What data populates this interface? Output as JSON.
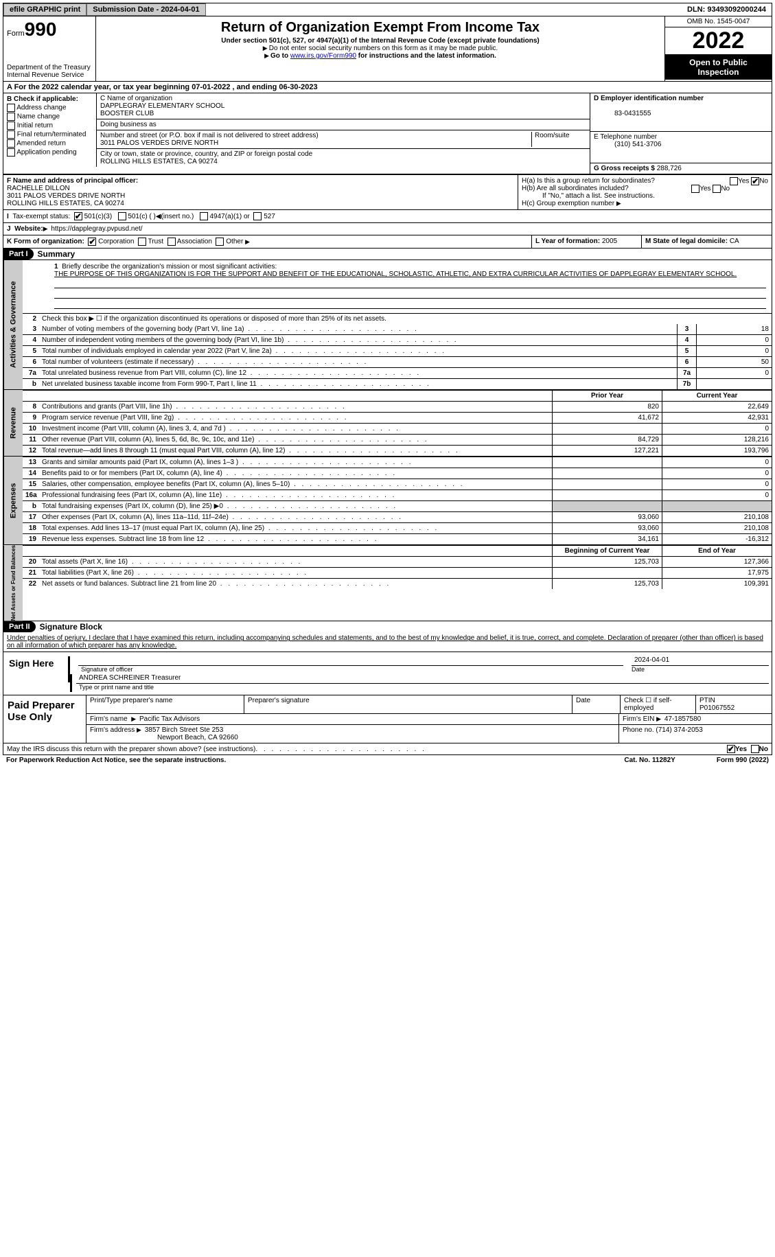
{
  "topbar": {
    "efile_btn": "efile GRAPHIC print",
    "submission_label": "Submission Date - 2024-04-01",
    "dln_label": "DLN: 93493092000244"
  },
  "hdr": {
    "form_label": "Form",
    "form_no": "990",
    "dept1": "Department of the Treasury",
    "dept2": "Internal Revenue Service",
    "title": "Return of Organization Exempt From Income Tax",
    "sub1": "Under section 501(c), 527, or 4947(a)(1) of the Internal Revenue Code (except private foundations)",
    "note1": "Do not enter social security numbers on this form as it may be made public.",
    "note2_pre": "Go to ",
    "note2_link": "www.irs.gov/Form990",
    "note2_post": " for instructions and the latest information.",
    "omb": "OMB No. 1545-0047",
    "year": "2022",
    "otpi": "Open to Public Inspection"
  },
  "rowA": "A  For the 2022 calendar year, or tax year beginning 07-01-2022    , and ending 06-30-2023",
  "b": {
    "label": "B Check if applicable:",
    "opts": [
      "Address change",
      "Name change",
      "Initial return",
      "Final return/terminated",
      "Amended return",
      "Application pending"
    ]
  },
  "c": {
    "name_label": "C Name of organization",
    "name1": "DAPPLEGRAY ELEMENTARY SCHOOL",
    "name2": "BOOSTER CLUB",
    "dba_label": "Doing business as",
    "addr_label": "Number and street (or P.O. box if mail is not delivered to street address)",
    "room_label": "Room/suite",
    "addr": "3011 PALOS VERDES DRIVE NORTH",
    "city_label": "City or town, state or province, country, and ZIP or foreign postal code",
    "city": "ROLLING HILLS ESTATES, CA   90274"
  },
  "d": {
    "ein_label": "D Employer identification number",
    "ein": "83-0431555",
    "tel_label": "E Telephone number",
    "tel": "(310) 541-3706",
    "gross_label": "G Gross receipts $",
    "gross": "288,726"
  },
  "f": {
    "label": "F Name and address of principal officer:",
    "name": "RACHELLE DILLON",
    "addr1": "3011 PALOS VERDES DRIVE NORTH",
    "addr2": "ROLLING HILLS ESTATES, CA   90274"
  },
  "h": {
    "a": "H(a)  Is this a group return for subordinates?",
    "b": "H(b)  Are all subordinates included?",
    "note": "If \"No,\" attach a list. See instructions.",
    "c": "H(c)  Group exemption number"
  },
  "i": {
    "label": "Tax-exempt status:",
    "o1": "501(c)(3)",
    "o2": "501(c) (  )",
    "o2b": "(insert no.)",
    "o3": "4947(a)(1) or",
    "o4": "527"
  },
  "j": {
    "label": "Website:",
    "val": "https://dapplegray.pvpusd.net/"
  },
  "k": {
    "label": "K Form of organization:",
    "o1": "Corporation",
    "o2": "Trust",
    "o3": "Association",
    "o4": "Other"
  },
  "l": {
    "label": "L Year of formation:",
    "val": "2005"
  },
  "m": {
    "label": "M State of legal domicile:",
    "val": "CA"
  },
  "part1": {
    "tag": "Part I",
    "title": "Summary",
    "line1_label": "Briefly describe the organization's mission or most significant activities:",
    "mission": "THE PURPOSE OF THIS ORGANIZATION IS FOR THE SUPPORT AND BENEFIT OF THE EDUCATIONAL, SCHOLASTIC, ATHLETIC, AND EXTRA CURRICULAR ACTIVITIES OF DAPPLEGRAY ELEMENTARY SCHOOL.",
    "line2": "Check this box ▶ ☐  if the organization discontinued its operations or disposed of more than 25% of its net assets.",
    "gov_lines": [
      {
        "n": "3",
        "d": "Number of voting members of the governing body (Part VI, line 1a)",
        "box": "3",
        "v": "18"
      },
      {
        "n": "4",
        "d": "Number of independent voting members of the governing body (Part VI, line 1b)",
        "box": "4",
        "v": "0"
      },
      {
        "n": "5",
        "d": "Total number of individuals employed in calendar year 2022 (Part V, line 2a)",
        "box": "5",
        "v": "0"
      },
      {
        "n": "6",
        "d": "Total number of volunteers (estimate if necessary)",
        "box": "6",
        "v": "50"
      },
      {
        "n": "7a",
        "d": "Total unrelated business revenue from Part VIII, column (C), line 12",
        "box": "7a",
        "v": "0"
      },
      {
        "n": "b",
        "d": "Net unrelated business taxable income from Form 990-T, Part I, line 11",
        "box": "7b",
        "v": ""
      }
    ],
    "col_hdrs": {
      "py": "Prior Year",
      "cy": "Current Year"
    },
    "rev_lines": [
      {
        "n": "8",
        "d": "Contributions and grants (Part VIII, line 1h)",
        "py": "820",
        "cy": "22,649"
      },
      {
        "n": "9",
        "d": "Program service revenue (Part VIII, line 2g)",
        "py": "41,672",
        "cy": "42,931"
      },
      {
        "n": "10",
        "d": "Investment income (Part VIII, column (A), lines 3, 4, and 7d )",
        "py": "",
        "cy": "0"
      },
      {
        "n": "11",
        "d": "Other revenue (Part VIII, column (A), lines 5, 6d, 8c, 9c, 10c, and 11e)",
        "py": "84,729",
        "cy": "128,216"
      },
      {
        "n": "12",
        "d": "Total revenue—add lines 8 through 11 (must equal Part VIII, column (A), line 12)",
        "py": "127,221",
        "cy": "193,796"
      }
    ],
    "exp_lines": [
      {
        "n": "13",
        "d": "Grants and similar amounts paid (Part IX, column (A), lines 1–3 )",
        "py": "",
        "cy": "0"
      },
      {
        "n": "14",
        "d": "Benefits paid to or for members (Part IX, column (A), line 4)",
        "py": "",
        "cy": "0"
      },
      {
        "n": "15",
        "d": "Salaries, other compensation, employee benefits (Part IX, column (A), lines 5–10)",
        "py": "",
        "cy": "0"
      },
      {
        "n": "16a",
        "d": "Professional fundraising fees (Part IX, column (A), line 11e)",
        "py": "",
        "cy": "0"
      },
      {
        "n": "b",
        "d": "Total fundraising expenses (Part IX, column (D), line 25) ▶0",
        "py": "SHADE",
        "cy": "SHADE"
      },
      {
        "n": "17",
        "d": "Other expenses (Part IX, column (A), lines 11a–11d, 11f–24e)",
        "py": "93,060",
        "cy": "210,108"
      },
      {
        "n": "18",
        "d": "Total expenses. Add lines 13–17 (must equal Part IX, column (A), line 25)",
        "py": "93,060",
        "cy": "210,108"
      },
      {
        "n": "19",
        "d": "Revenue less expenses. Subtract line 18 from line 12",
        "py": "34,161",
        "cy": "-16,312"
      }
    ],
    "na_hdrs": {
      "b": "Beginning of Current Year",
      "e": "End of Year"
    },
    "na_lines": [
      {
        "n": "20",
        "d": "Total assets (Part X, line 16)",
        "py": "125,703",
        "cy": "127,366"
      },
      {
        "n": "21",
        "d": "Total liabilities (Part X, line 26)",
        "py": "",
        "cy": "17,975"
      },
      {
        "n": "22",
        "d": "Net assets or fund balances. Subtract line 21 from line 20",
        "py": "125,703",
        "cy": "109,391"
      }
    ],
    "vtab_gov": "Activities & Governance",
    "vtab_rev": "Revenue",
    "vtab_exp": "Expenses",
    "vtab_na": "Net Assets or Fund Balances"
  },
  "part2": {
    "tag": "Part II",
    "title": "Signature Block",
    "decl": "Under penalties of perjury, I declare that I have examined this return, including accompanying schedules and statements, and to the best of my knowledge and belief, it is true, correct, and complete. Declaration of preparer (other than officer) is based on all information of which preparer has any knowledge.",
    "sign_here": "Sign Here",
    "sig_of_officer": "Signature of officer",
    "sig_date": "2024-04-01",
    "date_label": "Date",
    "officer_name": "ANDREA SCHREINER  Treasurer",
    "name_title_label": "Type or print name and title"
  },
  "prep": {
    "lbl": "Paid Preparer Use Only",
    "h1": "Print/Type preparer's name",
    "h2": "Preparer's signature",
    "h3": "Date",
    "h4": "Check ☐ if self-employed",
    "h5": "PTIN",
    "ptin": "P01067552",
    "firm_name_l": "Firm's name",
    "firm_name": "Pacific Tax Advisors",
    "firm_ein_l": "Firm's EIN",
    "firm_ein": "47-1857580",
    "firm_addr_l": "Firm's address",
    "firm_addr1": "3857 Birch Street Ste 253",
    "firm_addr2": "Newport Beach, CA   92660",
    "phone_l": "Phone no.",
    "phone": "(714) 374-2053"
  },
  "footer": {
    "discuss": "May the IRS discuss this return with the preparer shown above? (see instructions)",
    "yes": "Yes",
    "no": "No",
    "pra": "For Paperwork Reduction Act Notice, see the separate instructions.",
    "cat": "Cat. No. 11282Y",
    "form": "Form 990 (2022)"
  },
  "colors": {
    "link": "#0000cc",
    "hdr_bg": "#000000",
    "shade": "#cccccc"
  }
}
